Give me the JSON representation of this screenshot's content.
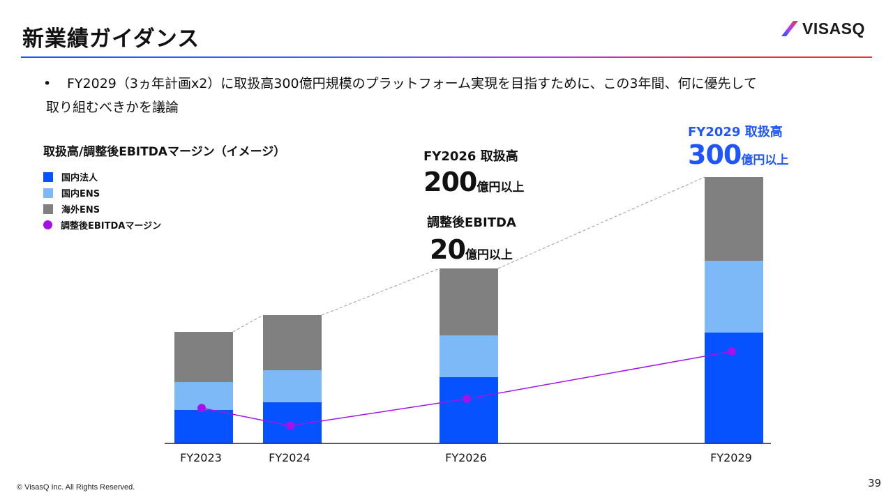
{
  "header": {
    "title": "新業績ガイダンス",
    "logo_text": "VISASQ"
  },
  "bullet": {
    "marker": "•",
    "line1": "FY2029（3ヵ年計画x2）に取扱高300億円規模のプラットフォーム実現を目指すために、この3年間、何に優先して",
    "line2": "取り組むべきかを議論"
  },
  "colors": {
    "domestic_corporate": "#0652ff",
    "domestic_ens": "#7cb9f6",
    "overseas_ens": "#808080",
    "margin_line": "#a512e8",
    "highlight": "#1e55ff"
  },
  "chart_data": {
    "type": "bar",
    "title": "取扱高/調整後EBITDAマージン（イメージ）",
    "stacked": true,
    "categories": [
      "FY2023",
      "FY2024",
      "FY2026",
      "FY2029"
    ],
    "series": [
      {
        "name": "国内法人",
        "values": [
          48,
          59,
          95,
          159
        ]
      },
      {
        "name": "国内ENS",
        "values": [
          40,
          46,
          60,
          103
        ]
      },
      {
        "name": "海外ENS",
        "values": [
          72,
          79,
          96,
          120
        ]
      }
    ],
    "line_series": {
      "name": "調整後EBITDAマージン",
      "values": [
        5,
        2.5,
        6.3,
        13
      ]
    },
    "legend_position": "top-left",
    "grid": false,
    "annotations": [
      {
        "category": "FY2026",
        "label": "FY2026 取扱高",
        "value": "200",
        "unit": "億円以上"
      },
      {
        "category": "FY2026",
        "label": "調整後EBITDA",
        "value": "20",
        "unit": "億円以上"
      },
      {
        "category": "FY2029",
        "label": "FY2029 取扱高",
        "value": "300",
        "unit": "億円以上"
      }
    ]
  },
  "footer": {
    "copyright": "© VisasQ Inc. All Rights Reserved.",
    "page_number": "39"
  }
}
